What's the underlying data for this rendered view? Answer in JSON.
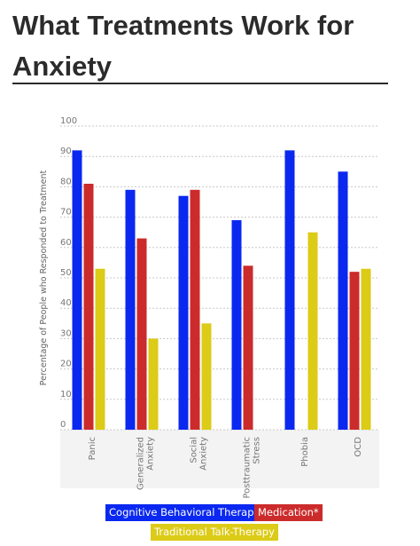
{
  "page": {
    "title": "What Treatments Work for Anxiety"
  },
  "chart_data": {
    "type": "bar",
    "ylabel": "Percentage of People who Responded to Treatment",
    "ylim": [
      0,
      100
    ],
    "yticks": [
      0,
      10,
      20,
      30,
      40,
      50,
      60,
      70,
      80,
      90,
      100
    ],
    "grid": true,
    "legend_position": "bottom",
    "categories": [
      "Panic",
      "Generalized Anxiety",
      "Social Anxiety",
      "Posttraumatic Stress",
      "Phobia",
      "OCD"
    ],
    "category_label_lines": [
      [
        "Panic"
      ],
      [
        "Generalized",
        "Anxiety"
      ],
      [
        "Social",
        "Anxiety"
      ],
      [
        "Posttraumatic",
        "Stress"
      ],
      [
        "Phobia"
      ],
      [
        "OCD"
      ]
    ],
    "series": [
      {
        "name": "Cognitive Behavioral Therapy",
        "color": "#0a28f0",
        "values": [
          92,
          79,
          77,
          69,
          92,
          85
        ]
      },
      {
        "name": "Medication*",
        "color": "#cc2b2b",
        "values": [
          81,
          63,
          79,
          54,
          null,
          52
        ]
      },
      {
        "name": "Traditional Talk-Therapy",
        "color": "#dccb17",
        "values": [
          53,
          30,
          35,
          null,
          65,
          53
        ]
      }
    ]
  }
}
